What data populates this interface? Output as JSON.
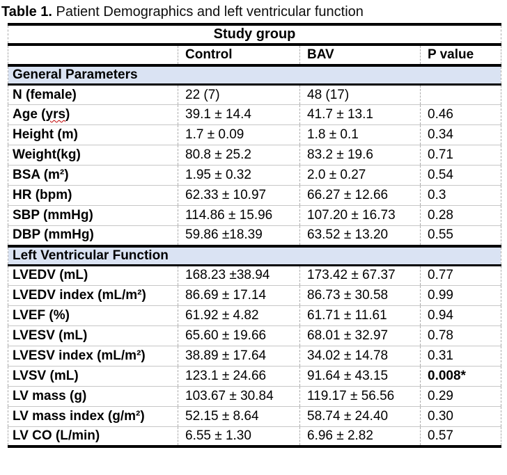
{
  "title": {
    "prefix": "Table 1.",
    "text": " Patient Demographics and left ventricular function"
  },
  "colors": {
    "section_header_bg": "#dae3f3",
    "heavy_border": "#000000",
    "row_grid_line": "#c6c6c6",
    "column_dashed_line": "#ababab",
    "spellcheck_squiggle": "#c00000"
  },
  "table": {
    "span_header": "Study group",
    "columns": [
      "",
      "Control",
      "BAV",
      "P value"
    ],
    "sections": [
      {
        "heading": "General Parameters",
        "rows": [
          {
            "label": "N (female)",
            "control": "22 (7)",
            "bav": "48 (17)",
            "p": ""
          },
          {
            "label": "Age (yrs)",
            "squiggle": "yrs",
            "control": "39.1 ± 14.4",
            "bav": "41.7 ± 13.1",
            "p": "0.46"
          },
          {
            "label": "Height (m)",
            "control": "1.7 ± 0.09",
            "bav": "1.8 ± 0.1",
            "p": "0.34"
          },
          {
            "label": "Weight(kg)",
            "control": "80.8 ± 25.2",
            "bav": "83.2 ± 19.6",
            "p": "0.71"
          },
          {
            "label": "BSA (m²)",
            "control": "1.95 ± 0.32",
            "bav": "2.0 ± 0.27",
            "p": "0.54"
          },
          {
            "label": "HR (bpm)",
            "control": "62.33 ± 10.97",
            "bav": "66.27 ± 12.66",
            "p": "0.3"
          },
          {
            "label": "SBP (mmHg)",
            "control": "114.86 ± 15.96",
            "bav": "107.20 ± 16.73",
            "p": "0.28"
          },
          {
            "label": "DBP (mmHg)",
            "control": "59.86 ±18.39",
            "bav": "63.52 ± 13.20",
            "p": "0.55"
          }
        ]
      },
      {
        "heading": "Left Ventricular Function",
        "rows": [
          {
            "label": "LVEDV (mL)",
            "control": "168.23 ±38.94",
            "bav": "173.42 ± 67.37",
            "p": "0.77"
          },
          {
            "label": "LVEDV index (mL/m²)",
            "control": "86.69 ± 17.14",
            "bav": "86.73 ± 30.58",
            "p": "0.99"
          },
          {
            "label": "LVEF (%)",
            "control": "61.92 ± 4.82",
            "bav": "61.71 ± 11.61",
            "p": "0.94"
          },
          {
            "label": "LVESV (mL)",
            "control": "65.60 ± 19.66",
            "bav": "68.01 ± 32.97",
            "p": "0.78"
          },
          {
            "label": "LVESV index (mL/m²)",
            "control": "38.89 ± 17.64",
            "bav": "34.02 ± 14.78",
            "p": "0.31"
          },
          {
            "label": "LVSV (mL)",
            "control": "123.1 ± 24.66",
            "bav": "91.64 ± 43.15",
            "p": "0.008*",
            "p_bold": true
          },
          {
            "label": "LV mass (g)",
            "control": "103.67 ± 30.84",
            "bav": "119.17 ± 56.56",
            "p": "0.29"
          },
          {
            "label": "LV mass index (g/m²)",
            "control": "52.15 ± 8.64",
            "bav": "58.74 ± 24.40",
            "p": "0.30"
          },
          {
            "label": "LV CO (L/min)",
            "control": "6.55 ± 1.30",
            "bav": "6.96 ± 2.82",
            "p": "0.57"
          }
        ]
      }
    ]
  }
}
